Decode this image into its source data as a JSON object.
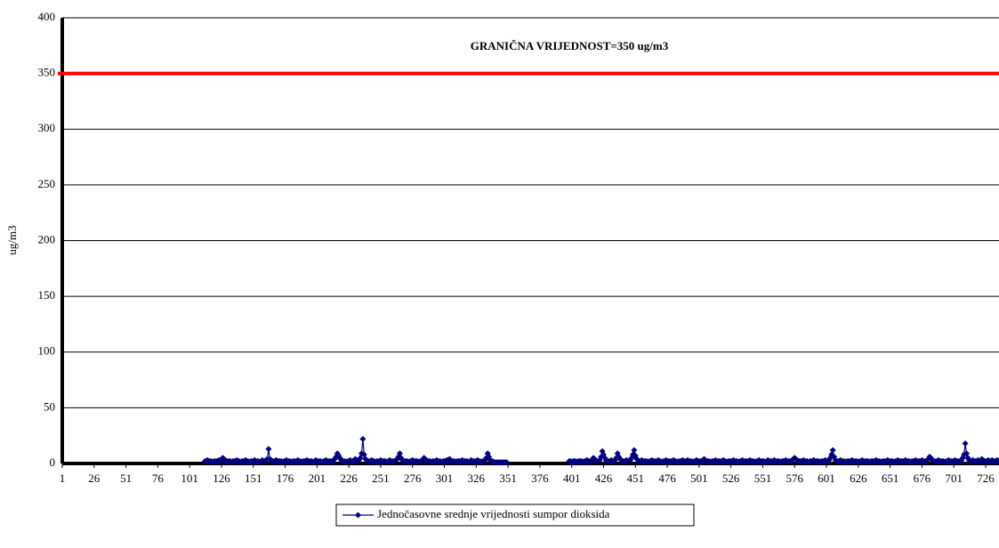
{
  "chart_data": {
    "type": "line",
    "y_label": "ug/m3",
    "threshold": {
      "value": 350,
      "label": "GRANIČNA VRIJEDNOST=350 ug/m3",
      "color": "#ff0000"
    },
    "xlim": [
      1,
      737
    ],
    "xticks": [
      1,
      26,
      51,
      76,
      101,
      126,
      151,
      176,
      201,
      226,
      251,
      276,
      301,
      326,
      351,
      376,
      401,
      426,
      451,
      476,
      501,
      526,
      551,
      576,
      601,
      626,
      651,
      676,
      701,
      726
    ],
    "ylim": [
      0,
      400
    ],
    "yticks": [
      0,
      50,
      100,
      150,
      200,
      250,
      300,
      350,
      400
    ],
    "grid": true,
    "legend": "bottom",
    "series": [
      {
        "name": "Jednočasovne srednje vrijednosti sumpor dioksida",
        "color": "#000080",
        "values": [
          null,
          null,
          null,
          null,
          null,
          null,
          null,
          null,
          null,
          null,
          null,
          null,
          null,
          null,
          null,
          null,
          null,
          null,
          null,
          null,
          null,
          null,
          null,
          null,
          null,
          null,
          null,
          null,
          null,
          null,
          null,
          null,
          null,
          null,
          null,
          null,
          null,
          null,
          null,
          null,
          null,
          null,
          null,
          null,
          null,
          null,
          null,
          null,
          null,
          null,
          null,
          null,
          null,
          null,
          null,
          null,
          null,
          null,
          null,
          null,
          null,
          null,
          null,
          null,
          null,
          null,
          null,
          null,
          null,
          null,
          null,
          null,
          null,
          null,
          null,
          null,
          null,
          null,
          null,
          null,
          null,
          null,
          null,
          null,
          null,
          null,
          null,
          null,
          null,
          null,
          null,
          null,
          null,
          null,
          null,
          null,
          null,
          null,
          null,
          null,
          null,
          null,
          null,
          null,
          null,
          null,
          null,
          null,
          null,
          null,
          null,
          null,
          2,
          2,
          3,
          2,
          2,
          2,
          1,
          2,
          2,
          2,
          2,
          3,
          2,
          3,
          5,
          4,
          3,
          2,
          2,
          2,
          2,
          1,
          2,
          2,
          2,
          3,
          2,
          2,
          1,
          2,
          2,
          2,
          3,
          2,
          2,
          1,
          2,
          2,
          2,
          3,
          2,
          2,
          2,
          1,
          2,
          3,
          2,
          2,
          3,
          4,
          13,
          4,
          3,
          2,
          2,
          2,
          3,
          2,
          2,
          2,
          2,
          1,
          2,
          2,
          3,
          2,
          2,
          2,
          1,
          2,
          2,
          2,
          2,
          3,
          2,
          2,
          1,
          2,
          2,
          2,
          3,
          2,
          2,
          2,
          2,
          1,
          2,
          3,
          2,
          2,
          2,
          2,
          1,
          2,
          2,
          3,
          2,
          2,
          2,
          2,
          2,
          3,
          4,
          6,
          9,
          7,
          5,
          3,
          2,
          2,
          2,
          1,
          2,
          2,
          3,
          2,
          2,
          2,
          4,
          3,
          2,
          3,
          5,
          9,
          22,
          8,
          4,
          3,
          2,
          2,
          2,
          3,
          2,
          2,
          1,
          2,
          2,
          2,
          3,
          2,
          2,
          2,
          2,
          1,
          2,
          3,
          2,
          2,
          2,
          2,
          3,
          4,
          6,
          9,
          5,
          3,
          2,
          2,
          2,
          2,
          1,
          2,
          2,
          3,
          2,
          2,
          2,
          2,
          1,
          2,
          2,
          3,
          5,
          4,
          3,
          2,
          2,
          2,
          1,
          2,
          2,
          2,
          3,
          2,
          2,
          2,
          1,
          2,
          2,
          2,
          3,
          2,
          4,
          3,
          2,
          2,
          2,
          1,
          2,
          2,
          2,
          2,
          3,
          2,
          2,
          2,
          2,
          1,
          2,
          3,
          2,
          2,
          2,
          2,
          3,
          2,
          2,
          1,
          2,
          2,
          3,
          5,
          9,
          6,
          3,
          2,
          2,
          1,
          1,
          1,
          1,
          1,
          1,
          1,
          1,
          1,
          1,
          1,
          null,
          null,
          null,
          null,
          null,
          null,
          null,
          null,
          null,
          null,
          null,
          null,
          null,
          null,
          null,
          null,
          null,
          null,
          null,
          null,
          null,
          null,
          null,
          null,
          null,
          null,
          null,
          null,
          null,
          null,
          null,
          null,
          null,
          null,
          null,
          null,
          null,
          null,
          null,
          null,
          null,
          null,
          null,
          null,
          null,
          null,
          null,
          null,
          2,
          2,
          1,
          2,
          2,
          2,
          1,
          2,
          2,
          2,
          2,
          1,
          2,
          2,
          3,
          2,
          2,
          2,
          3,
          5,
          4,
          3,
          2,
          2,
          3,
          6,
          11,
          8,
          5,
          3,
          2,
          2,
          2,
          3,
          2,
          2,
          3,
          5,
          9,
          6,
          4,
          3,
          2,
          2,
          2,
          3,
          2,
          2,
          3,
          5,
          8,
          12,
          7,
          4,
          3,
          2,
          2,
          3,
          2,
          2,
          2,
          2,
          1,
          2,
          2,
          3,
          2,
          2,
          2,
          2,
          3,
          2,
          2,
          1,
          2,
          2,
          3,
          2,
          2,
          2,
          2,
          2,
          3,
          2,
          2,
          1,
          2,
          2,
          2,
          3,
          2,
          2,
          2,
          3,
          2,
          2,
          2,
          1,
          2,
          2,
          3,
          2,
          2,
          2,
          2,
          3,
          4,
          3,
          2,
          2,
          2,
          1,
          2,
          2,
          2,
          3,
          2,
          2,
          2,
          2,
          2,
          3,
          2,
          2,
          1,
          2,
          2,
          2,
          2,
          3,
          2,
          2,
          2,
          1,
          2,
          2,
          3,
          2,
          2,
          2,
          2,
          2,
          3,
          2,
          2,
          2,
          1,
          2,
          2,
          3,
          2,
          2,
          2,
          2,
          1,
          2,
          3,
          2,
          2,
          2,
          2,
          3,
          2,
          2,
          2,
          2,
          1,
          2,
          2,
          2,
          3,
          2,
          2,
          2,
          2,
          3,
          4,
          5,
          4,
          3,
          2,
          2,
          2,
          2,
          3,
          2,
          2,
          2,
          1,
          2,
          2,
          2,
          3,
          2,
          2,
          2,
          2,
          1,
          2,
          2,
          2,
          3,
          2,
          2,
          3,
          5,
          8,
          12,
          6,
          3,
          2,
          2,
          2,
          3,
          2,
          2,
          2,
          1,
          2,
          2,
          2,
          2,
          3,
          2,
          2,
          2,
          2,
          1,
          2,
          2,
          3,
          2,
          2,
          2,
          2,
          2,
          1,
          2,
          2,
          2,
          2,
          3,
          2,
          2,
          2,
          1,
          2,
          2,
          2,
          2,
          3,
          2,
          2,
          2,
          2,
          1,
          2,
          2,
          3,
          2,
          2,
          2,
          2,
          2,
          3,
          2,
          2,
          2,
          1,
          2,
          2,
          2,
          3,
          2,
          2,
          2,
          2,
          3,
          2,
          2,
          2,
          3,
          4,
          6,
          5,
          3,
          2,
          2,
          2,
          2,
          3,
          2,
          2,
          2,
          2,
          1,
          2,
          2,
          3,
          2,
          2,
          2,
          2,
          3,
          2,
          2,
          2,
          2,
          3,
          5,
          8,
          18,
          9,
          5,
          3,
          2,
          2,
          3,
          2,
          2,
          2,
          3,
          2,
          2,
          4,
          3,
          2,
          2,
          2,
          3,
          2,
          2,
          3,
          2,
          2,
          2,
          3,
          2,
          2
        ]
      }
    ]
  }
}
